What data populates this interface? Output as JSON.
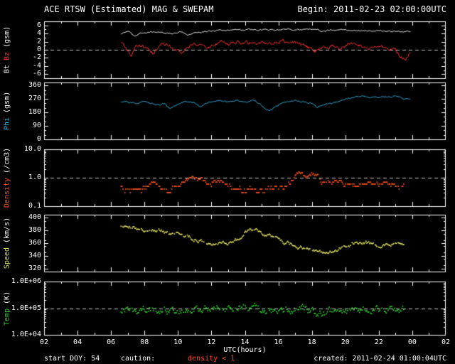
{
  "header": {
    "title": "ACE RTSW (Estimated) MAG & SWEPAM",
    "begin": "Begin: 2011-02-23 02:00:00UTC"
  },
  "footer": {
    "start_doy": "start DOY: 54",
    "caution": "caution:",
    "caution_value": "density < 1",
    "created": "created: 2011-02-24 01:00:04UTC"
  },
  "x_axis": {
    "label": "UTC(hours)",
    "start_hour": 2,
    "end_hour": 26,
    "tick_labels": [
      "02",
      "04",
      "06",
      "08",
      "10",
      "12",
      "14",
      "16",
      "18",
      "20",
      "22",
      "00",
      "02"
    ]
  },
  "colors": {
    "background": "#000000",
    "frame": "#ffffff",
    "dashed_grid": "#cccccc",
    "bt": "#ffffff",
    "bz": "#ff3333",
    "phi": "#33bbee",
    "density": "#ff5522",
    "speed": "#e0e060",
    "temp": "#33cc33",
    "caution_text": "#ff4422"
  },
  "chart_data": [
    {
      "type": "line",
      "name": "mag-bt-bz",
      "scale": "linear",
      "ylim": [
        -7,
        7
      ],
      "ytick_values": [
        6,
        4,
        2,
        0,
        -2,
        -4,
        -6
      ],
      "ytick_labels": [
        "6",
        "4",
        "2",
        "0",
        "-2",
        "-4",
        "-6"
      ],
      "minor_step": 1,
      "dashed_at": [
        0
      ],
      "ylabel_parts": [
        {
          "text": "Bt ",
          "color": "#ffffff"
        },
        {
          "text": "Bz ",
          "color": "#ff3333"
        },
        {
          "text": "(gsm)",
          "color": "#ffffff"
        }
      ],
      "series": [
        {
          "name": "Bt",
          "color": "#ffffff",
          "style": "line",
          "noise": 0.12,
          "x": [
            6.6,
            7.0,
            7.4,
            7.8,
            8.2,
            9.0,
            9.6,
            10.2,
            10.6,
            11.0,
            11.6,
            12.2,
            13.0,
            13.6,
            14.2,
            15.0,
            15.6,
            16.2,
            17.0,
            17.6,
            18.2,
            18.6,
            19.0,
            19.6,
            20.2,
            21.0,
            21.6,
            22.2,
            23.0,
            23.5,
            23.9
          ],
          "y": [
            4.0,
            4.6,
            3.2,
            4.2,
            4.4,
            4.3,
            4.0,
            4.3,
            3.7,
            4.2,
            4.5,
            4.6,
            5.0,
            4.9,
            5.0,
            4.9,
            5.0,
            5.0,
            5.0,
            5.1,
            5.2,
            4.5,
            4.8,
            4.9,
            4.8,
            4.7,
            4.6,
            4.7,
            4.5,
            4.5,
            4.4
          ]
        },
        {
          "name": "Bz",
          "color": "#ff3333",
          "style": "line",
          "noise": 0.35,
          "x": [
            6.6,
            6.9,
            7.2,
            7.5,
            7.8,
            8.1,
            8.5,
            9.0,
            9.4,
            9.8,
            10.2,
            10.5,
            10.8,
            11.2,
            11.6,
            12.0,
            12.5,
            13.0,
            13.5,
            14.0,
            14.5,
            15.0,
            15.5,
            16.0,
            16.5,
            17.0,
            17.4,
            17.8,
            18.2,
            18.5,
            18.8,
            19.2,
            19.6,
            20.0,
            20.5,
            21.0,
            21.5,
            22.0,
            22.5,
            23.0,
            23.3,
            23.6,
            23.9
          ],
          "y": [
            1.8,
            0.3,
            -1.6,
            0.4,
            1.0,
            0.2,
            -0.6,
            1.4,
            1.0,
            0.2,
            -1.2,
            0.6,
            1.2,
            1.6,
            0.6,
            1.0,
            2.0,
            1.4,
            2.0,
            1.5,
            2.0,
            1.6,
            1.4,
            1.6,
            2.0,
            1.8,
            1.0,
            0.4,
            -0.6,
            0.4,
            0.8,
            1.0,
            0.2,
            1.0,
            1.5,
            1.0,
            0.4,
            1.0,
            0.6,
            -0.2,
            -1.5,
            -2.0,
            -1.0
          ]
        }
      ]
    },
    {
      "type": "line",
      "name": "phi",
      "scale": "linear",
      "ylim": [
        0,
        380
      ],
      "ytick_values": [
        360,
        270,
        180,
        90,
        0
      ],
      "ytick_labels": [
        "360",
        "270",
        "180",
        "90",
        "0"
      ],
      "minor_step": 30,
      "dashed_at": [],
      "ylabel_parts": [
        {
          "text": "Phi ",
          "color": "#33bbee"
        },
        {
          "text": "(gsm)",
          "color": "#ffffff"
        }
      ],
      "series": [
        {
          "name": "Phi",
          "color": "#33bbee",
          "style": "line",
          "noise": 4,
          "x": [
            6.6,
            7.0,
            7.5,
            8.0,
            8.4,
            8.8,
            9.2,
            9.5,
            9.8,
            10.2,
            10.6,
            11.0,
            11.3,
            11.6,
            12.0,
            12.5,
            13.0,
            13.5,
            14.0,
            14.5,
            14.9,
            15.2,
            15.5,
            15.8,
            16.1,
            16.5,
            17.0,
            17.5,
            18.0,
            18.3,
            18.6,
            19.0,
            19.5,
            20.0,
            20.5,
            21.0,
            21.5,
            22.0,
            22.5,
            23.0,
            23.5,
            23.9
          ],
          "y": [
            255,
            248,
            244,
            252,
            238,
            228,
            238,
            205,
            225,
            248,
            252,
            244,
            215,
            242,
            250,
            256,
            250,
            256,
            252,
            260,
            238,
            205,
            195,
            215,
            240,
            252,
            256,
            250,
            244,
            215,
            228,
            242,
            252,
            268,
            280,
            286,
            280,
            286,
            282,
            286,
            272,
            266
          ]
        }
      ]
    },
    {
      "type": "scatter",
      "name": "density",
      "scale": "log",
      "ylim": [
        0.1,
        10
      ],
      "ytick_values": [
        10,
        1,
        0.1
      ],
      "ytick_labels": [
        "10.0",
        "1.0",
        "0.1"
      ],
      "dashed_at": [
        1
      ],
      "ylabel_parts": [
        {
          "text": "Density ",
          "color": "#ff5522"
        },
        {
          "text": "(/cm3)",
          "color": "#ffffff"
        }
      ],
      "series": [
        {
          "name": "Density",
          "color": "#ff5522",
          "style": "dots",
          "noise": 0.07,
          "quantize": 0.1,
          "x": [
            6.6,
            7.0,
            7.5,
            8.0,
            8.5,
            9.0,
            9.5,
            10.0,
            10.5,
            11.0,
            11.5,
            12.0,
            12.5,
            13.0,
            13.5,
            14.0,
            14.5,
            15.0,
            15.5,
            16.0,
            16.5,
            17.0,
            17.3,
            17.6,
            18.0,
            18.3,
            18.6,
            19.0,
            19.5,
            20.0,
            20.5,
            21.0,
            21.5,
            22.0,
            22.5,
            23.0,
            23.5
          ],
          "y": [
            0.5,
            0.4,
            0.35,
            0.5,
            0.6,
            0.5,
            0.4,
            0.6,
            0.9,
            1.0,
            0.8,
            0.7,
            0.9,
            0.6,
            0.4,
            0.35,
            0.4,
            0.45,
            0.4,
            0.5,
            0.6,
            0.9,
            1.5,
            1.0,
            1.8,
            1.2,
            0.8,
            1.0,
            0.7,
            0.6,
            0.5,
            0.55,
            0.5,
            0.6,
            0.5,
            0.45,
            0.5
          ]
        }
      ]
    },
    {
      "type": "scatter",
      "name": "speed",
      "scale": "linear",
      "ylim": [
        315,
        405
      ],
      "ytick_values": [
        400,
        380,
        360,
        340,
        320
      ],
      "ytick_labels": [
        "400",
        "380",
        "360",
        "340",
        "320"
      ],
      "minor_step": 10,
      "dashed_at": [],
      "ylabel_parts": [
        {
          "text": "Speed ",
          "color": "#e0e060"
        },
        {
          "text": "(km/s)",
          "color": "#ffffff"
        }
      ],
      "series": [
        {
          "name": "Speed",
          "color": "#e0e060",
          "style": "dots",
          "noise": 2.2,
          "x": [
            6.6,
            7.0,
            7.5,
            8.0,
            8.5,
            9.0,
            9.5,
            10.0,
            10.5,
            11.0,
            11.5,
            12.0,
            12.5,
            13.0,
            13.5,
            14.0,
            14.3,
            14.7,
            15.0,
            15.5,
            16.0,
            16.5,
            17.0,
            17.5,
            18.0,
            18.5,
            19.0,
            19.5,
            20.0,
            20.5,
            21.0,
            21.5,
            22.0,
            22.5,
            23.0,
            23.5
          ],
          "y": [
            385,
            388,
            385,
            382,
            380,
            378,
            375,
            372,
            370,
            366,
            362,
            360,
            358,
            362,
            366,
            378,
            380,
            378,
            375,
            370,
            365,
            360,
            356,
            352,
            350,
            345,
            348,
            350,
            355,
            360,
            362,
            360,
            358,
            360,
            358,
            355
          ]
        }
      ]
    },
    {
      "type": "scatter",
      "name": "temp",
      "scale": "log",
      "ylim": [
        10000,
        1000000
      ],
      "ytick_values": [
        1000000,
        100000,
        10000
      ],
      "ytick_labels": [
        "1.0E+06",
        "1.0E+05",
        "1.0E+04"
      ],
      "dashed_at": [
        100000
      ],
      "ylabel_parts": [
        {
          "text": "Temp ",
          "color": "#33cc33"
        },
        {
          "text": "(K)",
          "color": "#ffffff"
        }
      ],
      "series": [
        {
          "name": "Temp",
          "color": "#33cc33",
          "style": "dots",
          "noise": 0.1,
          "x": [
            6.6,
            7.0,
            7.5,
            8.0,
            8.5,
            9.0,
            9.5,
            10.0,
            10.5,
            11.0,
            11.5,
            12.0,
            12.5,
            13.0,
            13.5,
            14.0,
            14.5,
            15.0,
            15.5,
            16.0,
            16.5,
            17.0,
            17.5,
            18.0,
            18.5,
            19.0,
            19.5,
            20.0,
            20.5,
            21.0,
            21.5,
            22.0,
            22.5,
            23.0,
            23.5
          ],
          "y": [
            80000,
            90000,
            70000,
            80000,
            100000,
            90000,
            80000,
            70000,
            90000,
            110000,
            100000,
            90000,
            120000,
            110000,
            100000,
            130000,
            110000,
            90000,
            80000,
            70000,
            80000,
            90000,
            100000,
            80000,
            60000,
            70000,
            80000,
            70000,
            80000,
            90000,
            80000,
            90000,
            100000,
            90000,
            80000
          ]
        }
      ]
    }
  ]
}
